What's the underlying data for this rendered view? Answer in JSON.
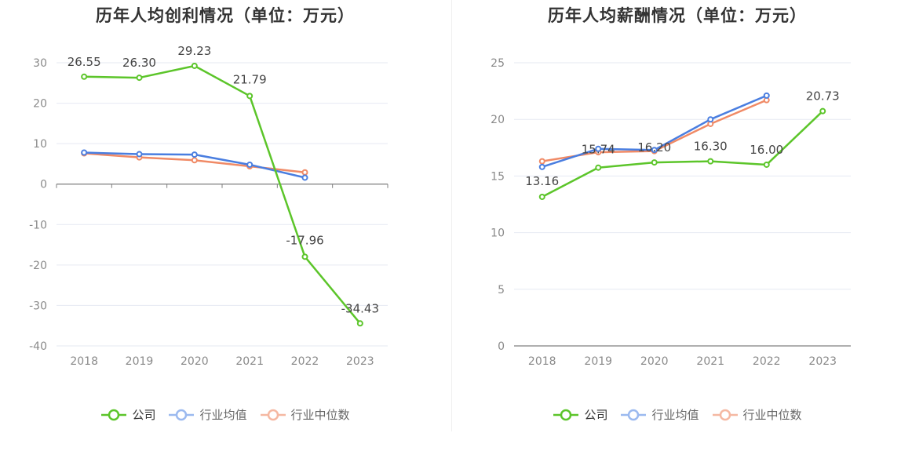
{
  "legend": {
    "company": "公司",
    "industry_avg": "行业均值",
    "industry_median": "行业中位数"
  },
  "colors": {
    "company": "#5cc52a",
    "industry_avg": "#4a7ee0",
    "industry_median": "#f08a66"
  },
  "chart_data": [
    {
      "type": "line",
      "title": "历年人均创利情况（单位：万元）",
      "categories": [
        "2018",
        "2019",
        "2020",
        "2021",
        "2022",
        "2023"
      ],
      "ylim": [
        -40,
        30
      ],
      "yticks": [
        30,
        20,
        10,
        0,
        -10,
        -20,
        -30,
        -40
      ],
      "grid": true,
      "legend_position": "bottom",
      "series": [
        {
          "name": "公司",
          "values": [
            26.55,
            26.3,
            29.23,
            21.79,
            -17.96,
            -34.43
          ],
          "labels": [
            "26.55",
            "26.30",
            "29.23",
            "21.79",
            "-17.96",
            "-34.43"
          ]
        },
        {
          "name": "行业均值",
          "values": [
            7.8,
            7.4,
            7.3,
            4.8,
            1.6,
            null
          ]
        },
        {
          "name": "行业中位数",
          "values": [
            7.6,
            6.6,
            5.9,
            4.4,
            2.9,
            null
          ]
        }
      ]
    },
    {
      "type": "line",
      "title": "历年人均薪酬情况（单位：万元）",
      "categories": [
        "2018",
        "2019",
        "2020",
        "2021",
        "2022",
        "2023"
      ],
      "ylim": [
        0,
        25
      ],
      "yticks": [
        25,
        20,
        15,
        10,
        5,
        0
      ],
      "grid": true,
      "legend_position": "bottom",
      "series": [
        {
          "name": "公司",
          "values": [
            13.16,
            15.74,
            16.2,
            16.3,
            16.0,
            20.73
          ],
          "labels": [
            "13.16",
            "15.74",
            "16.20",
            "16.30",
            "16.00",
            "20.73"
          ]
        },
        {
          "name": "行业均值",
          "values": [
            15.8,
            17.4,
            17.3,
            20.0,
            22.1,
            null
          ]
        },
        {
          "name": "行业中位数",
          "values": [
            16.3,
            17.1,
            17.2,
            19.6,
            21.7,
            null
          ]
        }
      ]
    }
  ]
}
